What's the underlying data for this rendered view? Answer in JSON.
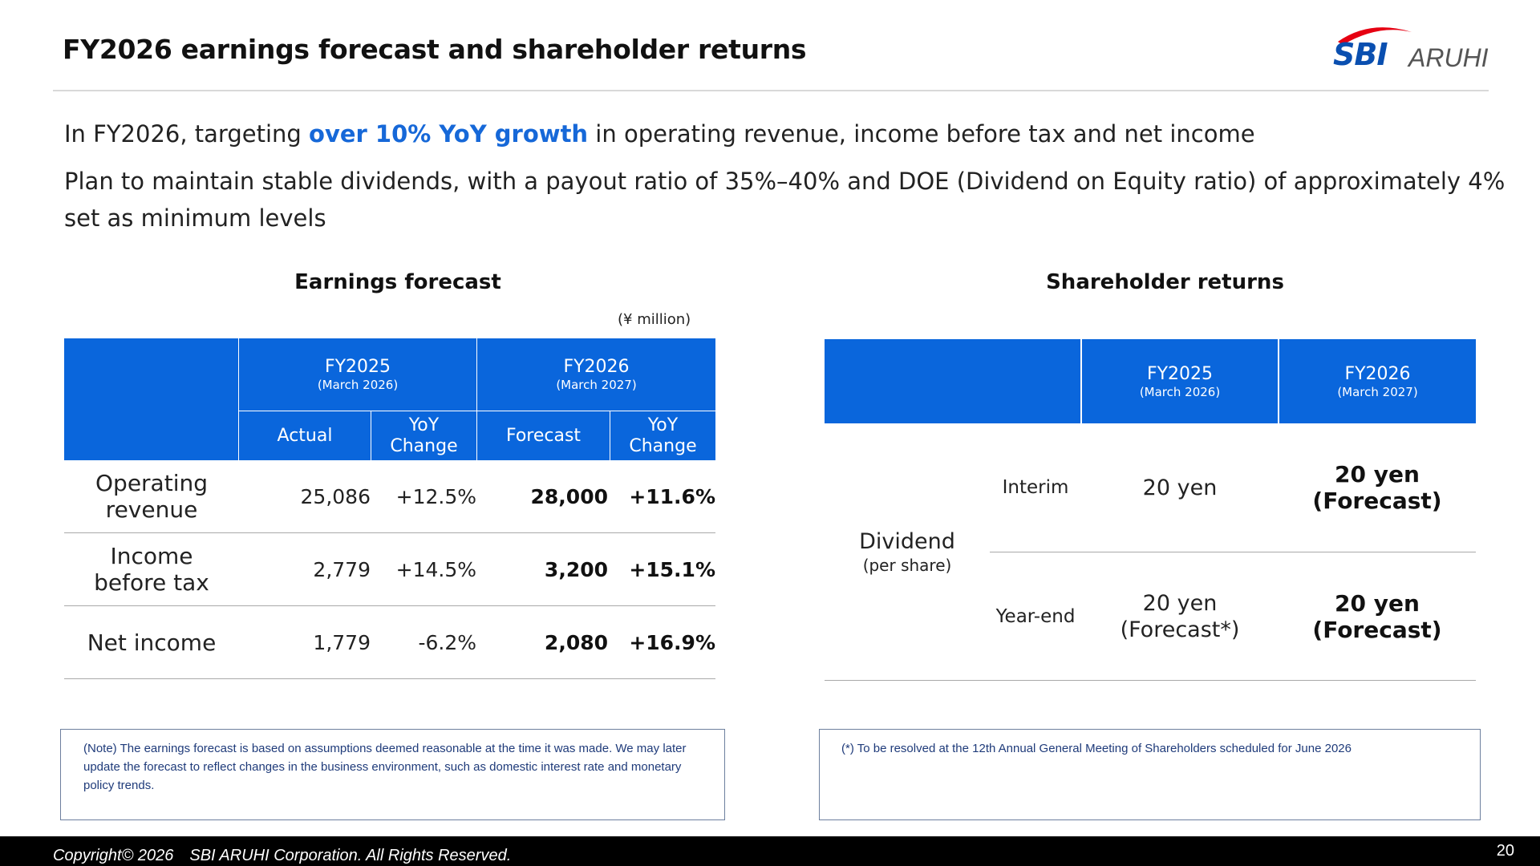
{
  "header": {
    "title": "FY2026 earnings forecast and shareholder returns",
    "logo": {
      "brand": "SBI",
      "name": "ARUHI",
      "swoosh_color": "#e60012",
      "brand_color": "#0a4fb0"
    }
  },
  "bullets": {
    "b1_pre": "In FY2026, targeting ",
    "b1_highlight": "over 10% YoY growth",
    "b1_post": " in operating revenue, income before tax and net income",
    "b2": "Plan to maintain stable dividends, with a payout ratio of 35%–40% and DOE (Dividend on Equity ratio) of approximately 4% set as minimum levels"
  },
  "earnings": {
    "title": "Earnings forecast",
    "unit": "(¥ million)",
    "header": {
      "fy2025": "FY2025",
      "fy2025_sub": "(March 2026)",
      "fy2026": "FY2026",
      "fy2026_sub": "(March 2027)",
      "actual": "Actual",
      "yoy1_a": "YoY",
      "yoy1_b": "Change",
      "forecast": "Forecast",
      "yoy2_a": "YoY",
      "yoy2_b": "Change"
    },
    "rows": [
      {
        "name_a": "Operating",
        "name_b": "revenue",
        "actual": "25,086",
        "yoy1": "+12.5%",
        "forecast": "28,000",
        "yoy2": "+11.6%"
      },
      {
        "name_a": "Income",
        "name_b": "before tax",
        "actual": "2,779",
        "yoy1": "+14.5%",
        "forecast": "3,200",
        "yoy2": "+15.1%"
      },
      {
        "name_a": "Net income",
        "name_b": "",
        "actual": "1,779",
        "yoy1": "-6.2%",
        "forecast": "2,080",
        "yoy2": "+16.9%"
      }
    ],
    "note": "(Note) The earnings forecast is based on assumptions deemed reasonable at the time it was made. We may later update the forecast to reflect changes in the business environment, such as domestic interest rate and monetary policy trends."
  },
  "returns": {
    "title": "Shareholder returns",
    "header": {
      "fy2025": "FY2025",
      "fy2025_sub": "(March 2026)",
      "fy2026": "FY2026",
      "fy2026_sub": "(March 2027)"
    },
    "dividend_label": "Dividend",
    "dividend_sub": "(per share)",
    "interim": {
      "label": "Interim",
      "fy2025": "20 yen",
      "fy2026_a": "20 yen",
      "fy2026_b": "(Forecast)"
    },
    "year_end": {
      "label": "Year-end",
      "fy2025_a": "20 yen",
      "fy2025_b": "(Forecast*)",
      "fy2026_a": "20 yen",
      "fy2026_b": "(Forecast)"
    },
    "note": "(*) To be resolved at the 12th Annual General Meeting of Shareholders scheduled for June 2026"
  },
  "footer": {
    "copyright": "Copyright© 2026　SBI ARUHI Corporation. All Rights Reserved.",
    "page": "20"
  }
}
